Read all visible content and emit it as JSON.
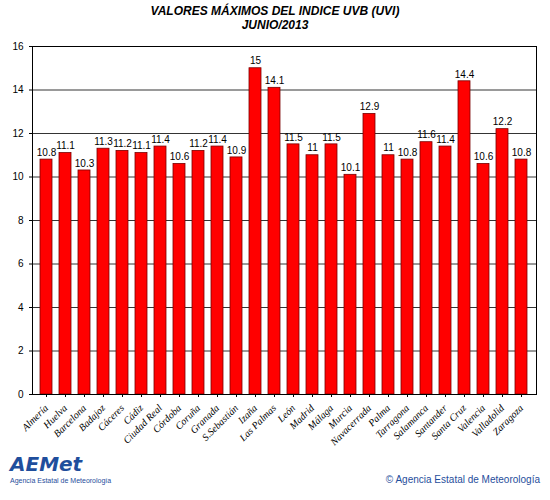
{
  "chart_data": {
    "type": "bar",
    "title": "VALORES MÁXIMOS DEL INDICE UVB (UVI)",
    "subtitle": "JUNIO/2013",
    "categories": [
      "Almería",
      "Huelva",
      "Barcelona",
      "Badajoz",
      "Cáceres",
      "Cádiz",
      "Ciudad Real",
      "Córdoba",
      "Coruña",
      "Granada",
      "S.Sebastián",
      "Izaña",
      "Las Palmas",
      "León",
      "Madrid",
      "Málaga",
      "Murcia",
      "Navacerrada",
      "Palma",
      "Tarragona",
      "Salamanca",
      "Santander",
      "Santa Cruz",
      "Valencia",
      "Valladolid",
      "Zaragoza"
    ],
    "values": [
      10.8,
      11.1,
      10.3,
      11.3,
      11.2,
      11.1,
      11.4,
      10.6,
      11.2,
      11.4,
      10.9,
      15,
      14.1,
      11.5,
      11,
      11.5,
      10.1,
      12.9,
      11,
      10.8,
      11.6,
      11.4,
      14.4,
      10.6,
      12.2,
      10.8
    ],
    "color": "#ff0000",
    "ylim": [
      0,
      16
    ],
    "yticks": [
      0,
      2,
      4,
      6,
      8,
      10,
      12,
      14,
      16
    ],
    "grid": true,
    "data_labels": true,
    "annotations": [
      "AEMet",
      "Agencia Estatal de Meteorología",
      "© Agencia Estatal de Meteorología"
    ]
  }
}
